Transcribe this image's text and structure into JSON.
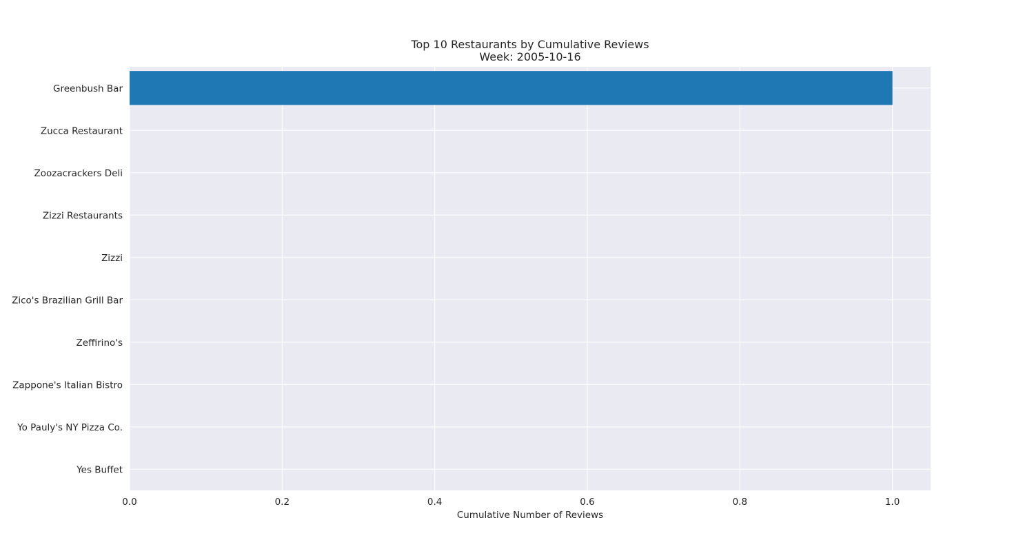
{
  "chart_data": {
    "type": "bar",
    "orientation": "horizontal",
    "title": "Top 10 Restaurants by Cumulative Reviews",
    "subtitle": "Week: 2005-10-16",
    "xlabel": "Cumulative Number of Reviews",
    "ylabel": "",
    "xlim": [
      0,
      1.05
    ],
    "xticks": [
      "0.0",
      "0.2",
      "0.4",
      "0.6",
      "0.8",
      "1.0"
    ],
    "xtick_values": [
      0,
      0.2,
      0.4,
      0.6,
      0.8,
      1.0
    ],
    "grid": true,
    "categories": [
      "Greenbush Bar",
      "Zucca Restaurant",
      "Zoozacrackers Deli",
      "Zizzi Restaurants",
      "Zizzi",
      "Zico's Brazilian Grill Bar",
      "Zeffirino's",
      "Zappone's Italian Bistro",
      "Yo Pauly's NY Pizza Co.",
      "Yes Buffet"
    ],
    "values": [
      1,
      0,
      0,
      0,
      0,
      0,
      0,
      0,
      0,
      0
    ],
    "colors": {
      "bar": "#1f77b4",
      "plot_background": "#eaeaf2",
      "grid": "#ffffff"
    }
  }
}
